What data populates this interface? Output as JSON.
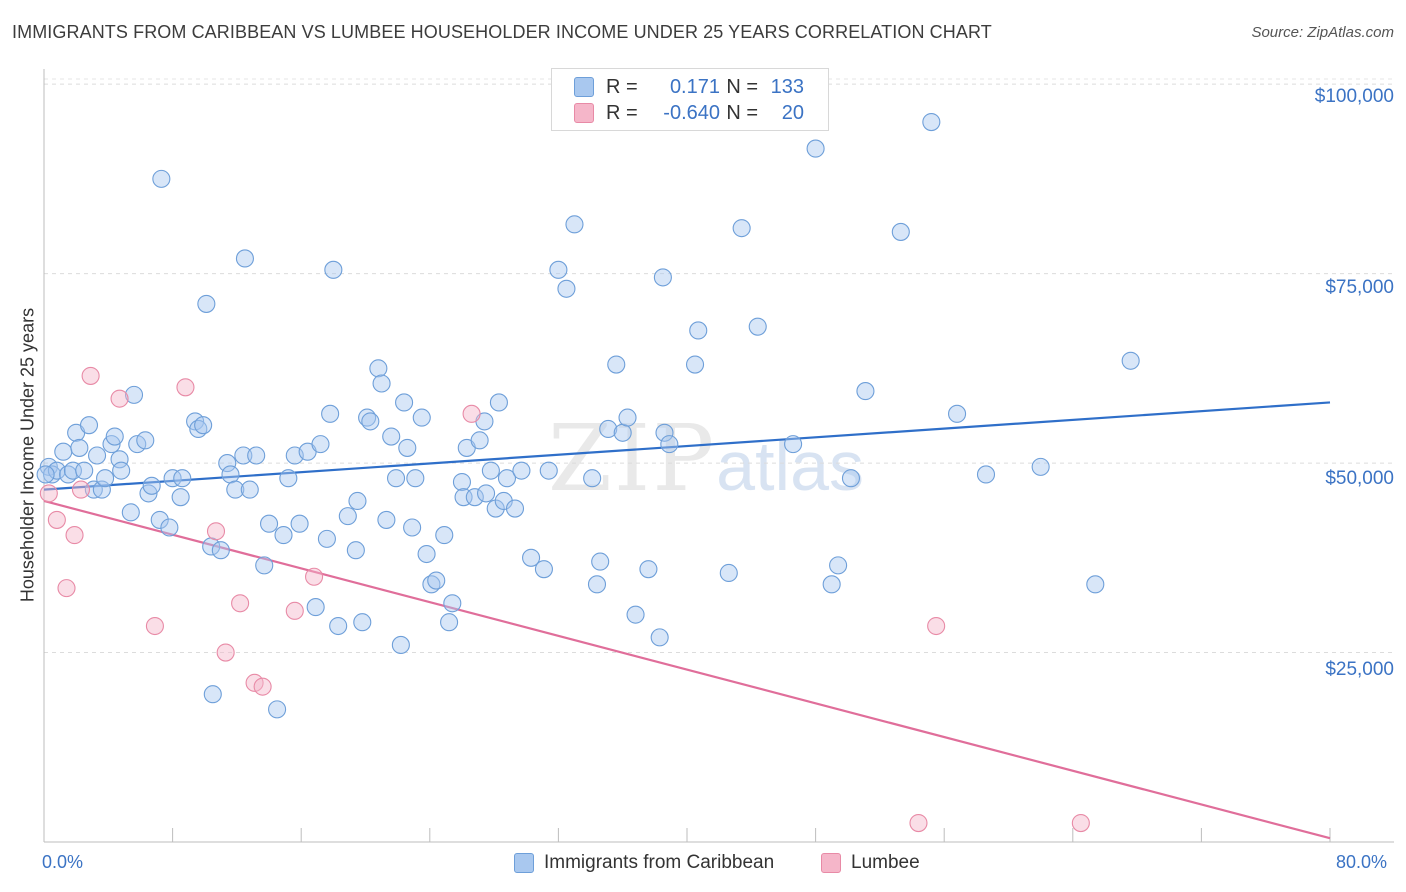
{
  "header": {
    "title": "IMMIGRANTS FROM CARIBBEAN VS LUMBEE HOUSEHOLDER INCOME UNDER 25 YEARS CORRELATION CHART",
    "source": "Source: ZipAtlas.com"
  },
  "watermark": {
    "zip": "ZIP",
    "atlas": "atlas"
  },
  "legend_top": {
    "rows": [
      {
        "r_label": "R =",
        "r_value": "0.171",
        "n_label": "N =",
        "n_value": "133",
        "color": "#a9c8ef"
      },
      {
        "r_label": "R =",
        "r_value": "-0.640",
        "n_label": "N =",
        "n_value": "20",
        "color": "#f5b6c9"
      }
    ]
  },
  "legend_bottom": {
    "items": [
      {
        "label": "Immigrants from Caribbean",
        "color": "#a9c8ef"
      },
      {
        "label": "Lumbee",
        "color": "#f5b6c9"
      }
    ]
  },
  "axes": {
    "ylabel": "Householder Income Under 25 years",
    "x_min_label": "0.0%",
    "x_max_label": "80.0%",
    "y_ticks": [
      "$100,000",
      "$75,000",
      "$50,000",
      "$25,000"
    ]
  },
  "chart_data": {
    "type": "scatter",
    "title": "IMMIGRANTS FROM CARIBBEAN VS LUMBEE HOUSEHOLDER INCOME UNDER 25 YEARS CORRELATION CHART",
    "xlabel": "",
    "ylabel": "Householder Income Under 25 years",
    "xlim": [
      0,
      80
    ],
    "ylim": [
      0,
      102000
    ],
    "y_ticks": [
      25000,
      50000,
      75000,
      100000
    ],
    "grid": true,
    "legend": "bottom",
    "series": [
      {
        "name": "Immigrants from Caribbean",
        "color": "#a9c8ef",
        "stroke": "#6e9fd9",
        "trend": {
          "x": [
            0,
            80
          ],
          "y": [
            46500,
            58000
          ],
          "color": "#2f6fc9"
        },
        "points": [
          [
            0.3,
            49500
          ],
          [
            0.5,
            48500
          ],
          [
            0.8,
            49000
          ],
          [
            1.2,
            51500
          ],
          [
            1.5,
            48500
          ],
          [
            1.8,
            49000
          ],
          [
            2,
            54000
          ],
          [
            2.2,
            52000
          ],
          [
            2.5,
            49000
          ],
          [
            2.8,
            55000
          ],
          [
            3.1,
            46500
          ],
          [
            3.3,
            51000
          ],
          [
            3.6,
            46500
          ],
          [
            3.8,
            48000
          ],
          [
            4.2,
            52500
          ],
          [
            4.4,
            53500
          ],
          [
            4.7,
            50500
          ],
          [
            4.8,
            49000
          ],
          [
            5.4,
            43500
          ],
          [
            5.6,
            59000
          ],
          [
            5.8,
            52500
          ],
          [
            6.3,
            53000
          ],
          [
            6.5,
            46000
          ],
          [
            6.7,
            47000
          ],
          [
            7.2,
            42500
          ],
          [
            7.8,
            41500
          ],
          [
            7.3,
            87500
          ],
          [
            8,
            48000
          ],
          [
            8.5,
            45500
          ],
          [
            8.6,
            48000
          ],
          [
            9.4,
            55500
          ],
          [
            9.6,
            54500
          ],
          [
            9.9,
            55000
          ],
          [
            10.1,
            71000
          ],
          [
            10.4,
            39000
          ],
          [
            10.5,
            19500
          ],
          [
            11,
            38500
          ],
          [
            11.4,
            50000
          ],
          [
            11.6,
            48500
          ],
          [
            11.9,
            46500
          ],
          [
            12.4,
            51000
          ],
          [
            12.5,
            77000
          ],
          [
            12.8,
            46500
          ],
          [
            13.2,
            51000
          ],
          [
            13.7,
            36500
          ],
          [
            14,
            42000
          ],
          [
            14.5,
            17500
          ],
          [
            14.9,
            40500
          ],
          [
            15.2,
            48000
          ],
          [
            15.6,
            51000
          ],
          [
            15.9,
            42000
          ],
          [
            16.4,
            51500
          ],
          [
            16.9,
            31000
          ],
          [
            17.2,
            52500
          ],
          [
            17.6,
            40000
          ],
          [
            17.8,
            56500
          ],
          [
            18,
            75500
          ],
          [
            18.3,
            28500
          ],
          [
            18.9,
            43000
          ],
          [
            19.4,
            38500
          ],
          [
            19.5,
            45000
          ],
          [
            19.8,
            29000
          ],
          [
            20.1,
            56000
          ],
          [
            20.3,
            55500
          ],
          [
            20.8,
            62500
          ],
          [
            21,
            60500
          ],
          [
            21.3,
            42500
          ],
          [
            21.6,
            53500
          ],
          [
            21.9,
            48000
          ],
          [
            22.2,
            26000
          ],
          [
            22.4,
            58000
          ],
          [
            22.6,
            52000
          ],
          [
            22.9,
            41500
          ],
          [
            23.1,
            48000
          ],
          [
            23.5,
            56000
          ],
          [
            23.8,
            38000
          ],
          [
            24.1,
            34000
          ],
          [
            24.4,
            34500
          ],
          [
            24.9,
            40500
          ],
          [
            25.2,
            29000
          ],
          [
            25.4,
            31500
          ],
          [
            26,
            47500
          ],
          [
            26.1,
            45500
          ],
          [
            26.3,
            52000
          ],
          [
            26.8,
            45500
          ],
          [
            27.1,
            53000
          ],
          [
            27.4,
            55500
          ],
          [
            27.5,
            46000
          ],
          [
            27.8,
            49000
          ],
          [
            28.1,
            44000
          ],
          [
            28.3,
            58000
          ],
          [
            28.6,
            45000
          ],
          [
            28.8,
            48000
          ],
          [
            29.3,
            44000
          ],
          [
            29.7,
            49000
          ],
          [
            30.3,
            37500
          ],
          [
            31.1,
            36000
          ],
          [
            31.4,
            49000
          ],
          [
            32,
            75500
          ],
          [
            32.5,
            73000
          ],
          [
            33,
            81500
          ],
          [
            34.1,
            48000
          ],
          [
            34.4,
            34000
          ],
          [
            34.6,
            37000
          ],
          [
            35.1,
            54500
          ],
          [
            35.6,
            63000
          ],
          [
            36,
            54000
          ],
          [
            36.3,
            56000
          ],
          [
            36.8,
            30000
          ],
          [
            37.6,
            36000
          ],
          [
            38.3,
            27000
          ],
          [
            38.6,
            54000
          ],
          [
            38.9,
            52500
          ],
          [
            38.5,
            74500
          ],
          [
            40.5,
            63000
          ],
          [
            40.7,
            67500
          ],
          [
            42.6,
            35500
          ],
          [
            43.4,
            81000
          ],
          [
            44.4,
            68000
          ],
          [
            46.6,
            52500
          ],
          [
            48,
            91500
          ],
          [
            49,
            34000
          ],
          [
            49.4,
            36500
          ],
          [
            50.2,
            48000
          ],
          [
            51.1,
            59500
          ],
          [
            53.3,
            80500
          ],
          [
            55.2,
            95000
          ],
          [
            56.8,
            56500
          ],
          [
            58.6,
            48500
          ],
          [
            62,
            49500
          ],
          [
            65.4,
            34000
          ],
          [
            67.6,
            63500
          ],
          [
            0.1,
            48500
          ]
        ]
      },
      {
        "name": "Lumbee",
        "color": "#f5b6c9",
        "stroke": "#e88aa6",
        "trend": {
          "x": [
            0,
            80
          ],
          "y": [
            45000,
            500
          ],
          "color": "#e06e9a"
        },
        "points": [
          [
            0.3,
            46000
          ],
          [
            0.8,
            42500
          ],
          [
            1.4,
            33500
          ],
          [
            1.9,
            40500
          ],
          [
            2.3,
            46500
          ],
          [
            2.9,
            61500
          ],
          [
            4.7,
            58500
          ],
          [
            6.9,
            28500
          ],
          [
            8.8,
            60000
          ],
          [
            10.7,
            41000
          ],
          [
            11.3,
            25000
          ],
          [
            12.2,
            31500
          ],
          [
            13.1,
            21000
          ],
          [
            13.6,
            20500
          ],
          [
            15.6,
            30500
          ],
          [
            16.8,
            35000
          ],
          [
            26.6,
            56500
          ],
          [
            55.5,
            28500
          ],
          [
            54.4,
            2500
          ],
          [
            64.5,
            2500
          ]
        ]
      }
    ]
  }
}
